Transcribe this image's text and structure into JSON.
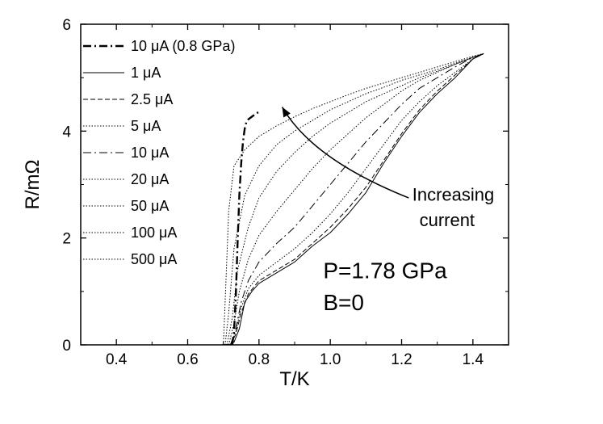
{
  "chart_data": {
    "type": "line",
    "title": "",
    "xlabel": "T/K",
    "ylabel": "R/mΩ",
    "xlim": [
      0.3,
      1.5
    ],
    "ylim": [
      0,
      6
    ],
    "x_ticks": [
      0.4,
      0.6,
      0.8,
      1.0,
      1.2,
      1.4
    ],
    "x_tick_labels": [
      "0.4",
      "0.6",
      "0.8",
      "1.0",
      "1.2",
      "1.4"
    ],
    "y_ticks": [
      0,
      2,
      4,
      6
    ],
    "y_tick_labels": [
      "0",
      "2",
      "4",
      "6"
    ],
    "grid": false,
    "legend_position": "top-left",
    "series": [
      {
        "name": "10 μA (0.8 GPa)",
        "style": "dashdot",
        "width": 2.4,
        "x": [
          0.725,
          0.73,
          0.735,
          0.74,
          0.745,
          0.75,
          0.755,
          0.76,
          0.765,
          0.77,
          0.78,
          0.79,
          0.8
        ],
        "y": [
          0.0,
          0.25,
          0.9,
          1.9,
          2.8,
          3.4,
          3.8,
          4.05,
          4.18,
          4.22,
          4.27,
          4.32,
          4.36
        ]
      },
      {
        "name": "1 μA",
        "style": "solid",
        "width": 1.0,
        "x": [
          0.3,
          0.69,
          0.72,
          0.73,
          0.745,
          0.76,
          0.78,
          0.8,
          0.85,
          0.9,
          0.95,
          1.0,
          1.05,
          1.1,
          1.15,
          1.2,
          1.25,
          1.3,
          1.35,
          1.4,
          1.43
        ],
        "y": [
          0.0,
          0.0,
          0.01,
          0.05,
          0.3,
          0.8,
          1.0,
          1.15,
          1.35,
          1.55,
          1.85,
          2.1,
          2.45,
          2.85,
          3.4,
          3.9,
          4.35,
          4.7,
          5.0,
          5.35,
          5.45
        ]
      },
      {
        "name": "2.5 μA",
        "style": "dash",
        "width": 1.0,
        "x": [
          0.72,
          0.735,
          0.75,
          0.77,
          0.8,
          0.85,
          0.9,
          0.95,
          1.0,
          1.05,
          1.1,
          1.15,
          1.2,
          1.25,
          1.3,
          1.35,
          1.4,
          1.43
        ],
        "y": [
          0.0,
          0.2,
          0.6,
          0.95,
          1.2,
          1.4,
          1.6,
          1.9,
          2.2,
          2.55,
          2.95,
          3.45,
          3.95,
          4.4,
          4.75,
          5.05,
          5.35,
          5.45
        ]
      },
      {
        "name": "5 μA",
        "style": "dot",
        "width": 1.0,
        "x": [
          0.72,
          0.735,
          0.75,
          0.77,
          0.8,
          0.85,
          0.9,
          0.95,
          1.0,
          1.05,
          1.1,
          1.15,
          1.2,
          1.25,
          1.3,
          1.35,
          1.4,
          1.43
        ],
        "y": [
          0.0,
          0.25,
          0.7,
          1.05,
          1.3,
          1.55,
          1.8,
          2.1,
          2.45,
          2.85,
          3.3,
          3.75,
          4.2,
          4.55,
          4.85,
          5.1,
          5.35,
          5.45
        ]
      },
      {
        "name": "10 μA",
        "style": "dashdot",
        "width": 1.0,
        "x": [
          0.72,
          0.735,
          0.75,
          0.77,
          0.8,
          0.85,
          0.9,
          0.95,
          1.0,
          1.05,
          1.1,
          1.15,
          1.2,
          1.25,
          1.3,
          1.35,
          1.4,
          1.43
        ],
        "y": [
          0.0,
          0.3,
          0.8,
          1.2,
          1.55,
          1.9,
          2.2,
          2.6,
          3.0,
          3.4,
          3.8,
          4.15,
          4.5,
          4.8,
          5.0,
          5.2,
          5.38,
          5.45
        ]
      },
      {
        "name": "20 μA",
        "style": "dot",
        "width": 1.0,
        "x": [
          0.715,
          0.73,
          0.745,
          0.77,
          0.8,
          0.85,
          0.9,
          0.95,
          1.0,
          1.05,
          1.1,
          1.15,
          1.2,
          1.25,
          1.3,
          1.35,
          1.4,
          1.43
        ],
        "y": [
          0.0,
          0.4,
          1.0,
          1.6,
          2.05,
          2.5,
          2.9,
          3.3,
          3.65,
          3.95,
          4.25,
          4.5,
          4.75,
          4.95,
          5.1,
          5.25,
          5.38,
          5.45
        ]
      },
      {
        "name": "50 μA",
        "style": "dot",
        "width": 1.0,
        "x": [
          0.71,
          0.725,
          0.74,
          0.77,
          0.8,
          0.85,
          0.9,
          0.95,
          1.0,
          1.05,
          1.1,
          1.15,
          1.2,
          1.25,
          1.3,
          1.35,
          1.4,
          1.43
        ],
        "y": [
          0.0,
          0.5,
          1.4,
          2.2,
          2.75,
          3.25,
          3.6,
          3.9,
          4.15,
          4.35,
          4.55,
          4.7,
          4.85,
          5.0,
          5.12,
          5.25,
          5.38,
          5.45
        ]
      },
      {
        "name": "100 μA",
        "style": "dot",
        "width": 1.0,
        "x": [
          0.705,
          0.715,
          0.73,
          0.76,
          0.8,
          0.85,
          0.9,
          0.95,
          1.0,
          1.05,
          1.1,
          1.15,
          1.2,
          1.25,
          1.3,
          1.35,
          1.4,
          1.43
        ],
        "y": [
          0.0,
          0.6,
          1.8,
          2.8,
          3.35,
          3.75,
          4.0,
          4.2,
          4.4,
          4.55,
          4.7,
          4.82,
          4.95,
          5.05,
          5.15,
          5.27,
          5.38,
          5.45
        ]
      },
      {
        "name": "500 μA",
        "style": "dot",
        "width": 1.0,
        "x": [
          0.7,
          0.705,
          0.715,
          0.73,
          0.76,
          0.8,
          0.85,
          0.9,
          0.95,
          1.0,
          1.05,
          1.1,
          1.15,
          1.2,
          1.25,
          1.3,
          1.35,
          1.4,
          1.43
        ],
        "y": [
          0.0,
          0.8,
          2.5,
          3.35,
          3.65,
          3.9,
          4.1,
          4.27,
          4.42,
          4.55,
          4.68,
          4.8,
          4.9,
          5.0,
          5.1,
          5.2,
          5.3,
          5.4,
          5.45
        ]
      }
    ],
    "annotations": [
      {
        "text": "Increasing",
        "x": 1.23,
        "y": 2.7
      },
      {
        "text": "current",
        "x": 1.25,
        "y": 2.22
      },
      {
        "text": "P=1.78 GPa",
        "x": 0.98,
        "y": 1.25
      },
      {
        "text": "B=0",
        "x": 0.98,
        "y": 0.65
      }
    ],
    "arrow": {
      "path": [
        [
          1.22,
          2.75
        ],
        [
          1.07,
          3.15
        ],
        [
          0.93,
          3.7
        ],
        [
          0.865,
          4.45
        ]
      ],
      "direction": "increasing current"
    }
  }
}
